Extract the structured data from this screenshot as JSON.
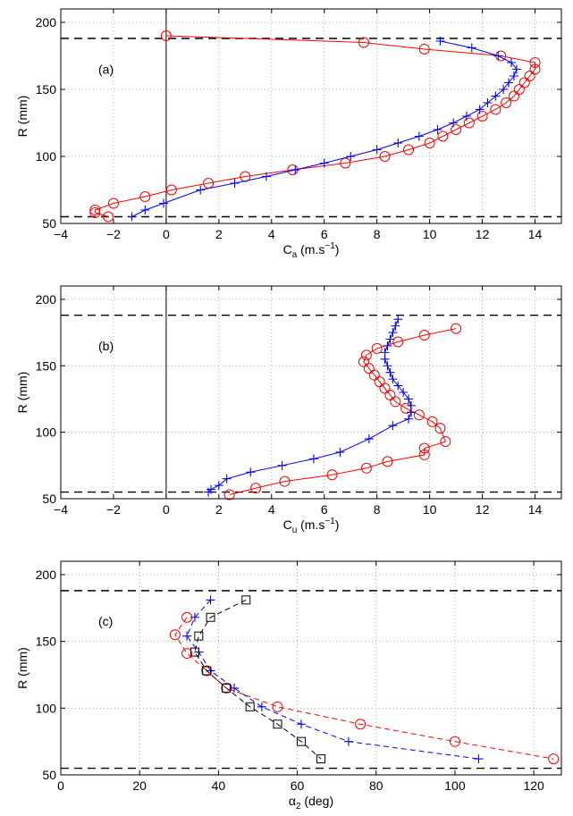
{
  "colors": {
    "red": "#ff0000",
    "blue": "#0000ff",
    "black": "#000000",
    "grid": "#9a9a9a"
  },
  "chart_data": [
    {
      "type": "line",
      "panel_label": "(a)",
      "xlabel": "C",
      "xlabel_sub": "a",
      "xlabel_unit_open": " (m.s",
      "xlabel_sup": "−1",
      "xlabel_unit_close": ")",
      "ylabel": "R (mm)",
      "xlim": [
        -4,
        15
      ],
      "ylim": [
        50,
        210
      ],
      "xticks": [
        -4,
        -2,
        0,
        2,
        4,
        6,
        8,
        10,
        12,
        14
      ],
      "yticks": [
        50,
        100,
        150,
        200
      ],
      "grid": true,
      "hlines": [
        188,
        55
      ],
      "vline": 0,
      "series": [
        {
          "color": "#ff0000",
          "marker": "circle",
          "dash": false,
          "x": [
            0.0,
            7.5,
            9.8,
            12.7,
            14.0,
            14.0,
            13.8,
            13.6,
            13.4,
            13.2,
            12.9,
            12.5,
            12.0,
            11.5,
            11.0,
            10.5,
            10.0,
            9.2,
            8.3,
            6.8,
            4.8,
            3.0,
            1.6,
            0.2,
            -0.8,
            -2.0,
            -2.7,
            -2.7,
            -2.2
          ],
          "y": [
            190,
            185,
            180,
            175,
            170,
            165,
            160,
            155,
            150,
            145,
            140,
            135,
            130,
            125,
            120,
            115,
            110,
            105,
            100,
            95,
            90,
            85,
            80,
            75,
            70,
            65,
            60,
            58,
            55
          ]
        },
        {
          "color": "#0000ff",
          "marker": "plus",
          "dash": false,
          "x": [
            10.4,
            11.6,
            12.6,
            13.1,
            13.3,
            13.2,
            13.0,
            12.8,
            12.5,
            12.2,
            11.9,
            11.4,
            10.9,
            10.3,
            9.6,
            8.8,
            8.0,
            7.0,
            6.0,
            4.9,
            3.8,
            2.6,
            1.3,
            -0.1,
            -0.8,
            -1.3
          ],
          "y": [
            186,
            181,
            175,
            170,
            165,
            160,
            155,
            150,
            145,
            140,
            135,
            130,
            125,
            120,
            115,
            110,
            105,
            100,
            95,
            90,
            85,
            80,
            75,
            65,
            60,
            55
          ]
        }
      ]
    },
    {
      "type": "line",
      "panel_label": "(b)",
      "xlabel": "C",
      "xlabel_sub": "u",
      "xlabel_unit_open": " (m.s",
      "xlabel_sup": "−1",
      "xlabel_unit_close": ")",
      "ylabel": "R (mm)",
      "xlim": [
        -4,
        15
      ],
      "ylim": [
        50,
        210
      ],
      "xticks": [
        -4,
        -2,
        0,
        2,
        4,
        6,
        8,
        10,
        12,
        14
      ],
      "yticks": [
        50,
        100,
        150,
        200
      ],
      "grid": true,
      "hlines": [
        188,
        55
      ],
      "vline": 0,
      "series": [
        {
          "color": "#ff0000",
          "marker": "circle",
          "dash": false,
          "x": [
            11.0,
            9.8,
            8.8,
            8.0,
            7.6,
            7.5,
            7.7,
            7.9,
            8.1,
            8.3,
            8.5,
            8.7,
            9.1,
            9.6,
            10.1,
            10.4,
            10.6,
            9.8,
            9.8,
            8.4,
            7.6,
            6.3,
            4.5,
            3.4,
            2.4
          ],
          "y": [
            178,
            173,
            168,
            163,
            158,
            153,
            148,
            143,
            138,
            133,
            128,
            123,
            118,
            113,
            108,
            103,
            93,
            88,
            83,
            78,
            73,
            68,
            63,
            58,
            53
          ]
        },
        {
          "color": "#0000ff",
          "marker": "plus",
          "dash": false,
          "x": [
            8.8,
            8.7,
            8.6,
            8.5,
            8.4,
            8.3,
            8.3,
            8.4,
            8.5,
            8.6,
            8.8,
            9.0,
            9.2,
            9.3,
            9.3,
            9.2,
            8.6,
            7.7,
            6.6,
            5.6,
            4.4,
            3.2,
            2.3,
            2.0,
            1.7,
            1.6
          ],
          "y": [
            185,
            180,
            175,
            170,
            165,
            160,
            155,
            150,
            145,
            140,
            135,
            130,
            125,
            120,
            115,
            110,
            105,
            95,
            85,
            80,
            75,
            70,
            65,
            60,
            57,
            55
          ]
        }
      ]
    },
    {
      "type": "line",
      "panel_label": "(c)",
      "xlabel": "α",
      "xlabel_sub": "2",
      "xlabel_unit_open": " (deg)",
      "xlabel_sup": "",
      "xlabel_unit_close": "",
      "ylabel": "R (mm)",
      "xlim": [
        0,
        127
      ],
      "ylim": [
        50,
        210
      ],
      "xticks": [
        0,
        20,
        40,
        60,
        80,
        100,
        120
      ],
      "yticks": [
        50,
        100,
        150,
        200
      ],
      "grid": true,
      "hlines": [
        188,
        55
      ],
      "vline": null,
      "series": [
        {
          "color": "#ff0000",
          "marker": "circle",
          "dash": true,
          "x": [
            32,
            29,
            32,
            37,
            42,
            55,
            76,
            100,
            125
          ],
          "y": [
            168,
            155,
            141,
            128,
            115,
            101,
            88,
            75,
            62
          ]
        },
        {
          "color": "#0000ff",
          "marker": "plus",
          "dash": true,
          "x": [
            38,
            34,
            32,
            35,
            38,
            44,
            51,
            61,
            73,
            106
          ],
          "y": [
            181,
            168,
            154,
            142,
            128,
            115,
            101,
            88,
            75,
            62
          ]
        },
        {
          "color": "#000000",
          "marker": "square",
          "dash": true,
          "x": [
            47,
            38,
            35,
            34,
            37,
            42,
            48,
            55,
            61,
            66
          ],
          "y": [
            181,
            168,
            154,
            142,
            128,
            115,
            101,
            88,
            75,
            62
          ]
        }
      ]
    }
  ]
}
